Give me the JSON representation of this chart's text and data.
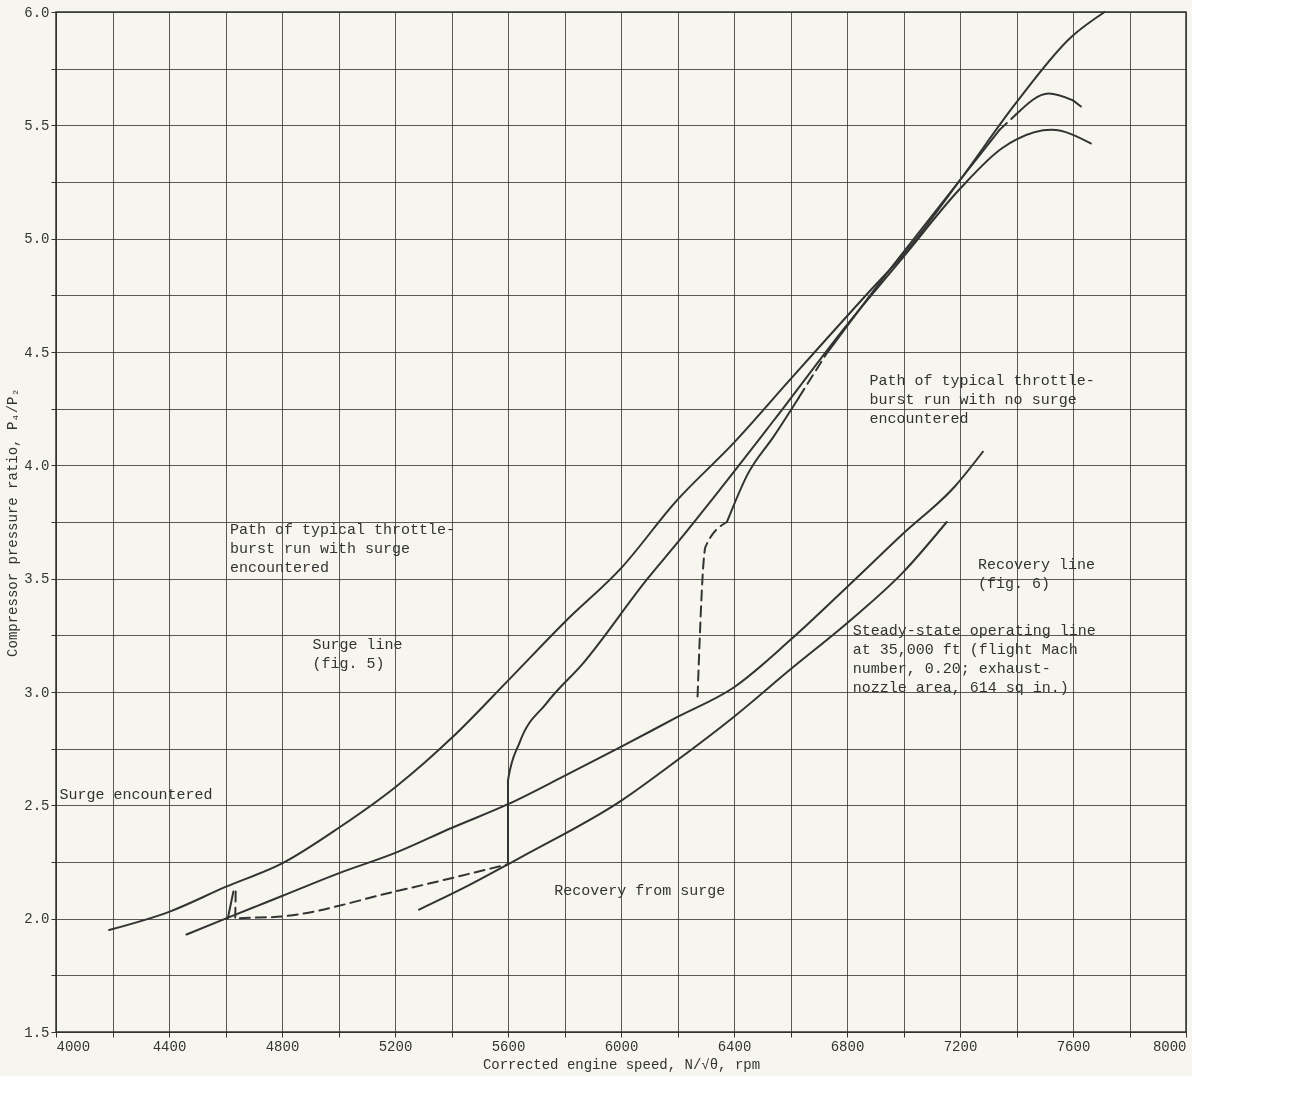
{
  "chart_data": {
    "type": "line",
    "xlabel": "Corrected engine speed, N/√θ, rpm",
    "ylabel": "Compressor pressure ratio, P₄/P₂",
    "xlim": [
      4000,
      8000
    ],
    "ylim": [
      1.5,
      6.0
    ],
    "xticks": [
      4000,
      {
        "value": 4200,
        "label": null
      },
      4400,
      {
        "value": 4600,
        "label": null
      },
      4800,
      {
        "value": 5000,
        "label": null
      },
      5200,
      {
        "value": 5400,
        "label": null
      },
      5600,
      {
        "value": 5800,
        "label": null
      },
      6000,
      {
        "value": 6200,
        "label": null
      },
      6400,
      {
        "value": 6600,
        "label": null
      },
      6800,
      {
        "value": 7000,
        "label": null
      },
      7200,
      {
        "value": 7400,
        "label": null
      },
      7600,
      {
        "value": 7800,
        "label": null
      },
      8000
    ],
    "yticks": [
      1.5,
      {
        "value": 1.75,
        "label": null
      },
      {
        "value": 2.0,
        "label": "2.0"
      },
      {
        "value": 2.25,
        "label": null
      },
      2.5,
      {
        "value": 2.75,
        "label": null
      },
      {
        "value": 3.0,
        "label": "3.0"
      },
      {
        "value": 3.25,
        "label": null
      },
      3.5,
      {
        "value": 3.75,
        "label": null
      },
      {
        "value": 4.0,
        "label": "4.0"
      },
      {
        "value": 4.25,
        "label": null
      },
      4.5,
      {
        "value": 4.75,
        "label": null
      },
      {
        "value": 5.0,
        "label": "5.0"
      },
      {
        "value": 5.25,
        "label": null
      },
      5.5,
      {
        "value": 5.75,
        "label": null
      },
      {
        "value": 6.0,
        "label": "6.0"
      }
    ],
    "grid": true,
    "series": [
      {
        "color": "#333333",
        "line_style": "solid",
        "x": [
          4188,
          4400,
          4600,
          4802,
          5000,
          5201,
          5403,
          5600,
          5802,
          6003,
          6194,
          6400,
          6600,
          6889,
          7000,
          7201,
          7399,
          7594,
          7712
        ],
        "values": [
          1.95,
          2.03,
          2.14,
          2.245,
          2.4,
          2.58,
          2.8,
          3.05,
          3.31,
          3.55,
          3.84,
          4.1,
          4.38,
          4.78,
          4.93,
          5.26,
          5.6,
          5.89,
          6.0
        ]
      },
      {
        "color": "#333333",
        "line_style": "solid",
        "x": [
          4462,
          4600,
          4800,
          5000,
          5201,
          5400,
          5600,
          5800,
          6003,
          6200,
          6399,
          6600,
          6806,
          7000,
          7184,
          7281
        ],
        "values": [
          1.93,
          2.0,
          2.1,
          2.2,
          2.29,
          2.4,
          2.505,
          2.63,
          2.76,
          2.89,
          3.02,
          3.23,
          3.47,
          3.7,
          3.91,
          4.06
        ]
      },
      {
        "color": "#333333",
        "line_style": "solid",
        "x": [
          5285,
          5450,
          5600,
          5674,
          6000,
          6200,
          6399,
          6600,
          6806,
          7000,
          7153
        ],
        "values": [
          2.04,
          2.14,
          2.24,
          2.29,
          2.52,
          2.7,
          2.89,
          3.1,
          3.31,
          3.53,
          3.75
        ]
      },
      {
        "color": "#333333",
        "line_style": "solid",
        "x": [
          4608,
          4628
        ],
        "values": [
          2.0,
          2.12
        ]
      },
      {
        "color": "#333333",
        "line_style": "dashed",
        "x": [
          4636,
          4634,
          4802,
          5201,
          5600
        ],
        "values": [
          2.12,
          2.0,
          2.01,
          2.12,
          2.24
        ]
      },
      {
        "color": "#333333",
        "line_style": "solid",
        "x": [
          5600,
          5600,
          5642,
          5736,
          5868,
          6094,
          6194,
          6542,
          6800,
          7000,
          7200,
          7350,
          7524,
          7663
        ],
        "values": [
          2.24,
          2.61,
          2.78,
          2.95,
          3.13,
          3.5,
          3.65,
          4.2,
          4.62,
          4.92,
          5.22,
          5.4,
          5.48,
          5.42
        ]
      },
      {
        "color": "#333333",
        "line_style": "dashed",
        "x": [
          6271,
          6299,
          6375
        ],
        "values": [
          2.98,
          3.64,
          3.75
        ]
      },
      {
        "color": "#333333",
        "line_style": "solid",
        "x": [
          6375,
          6448,
          6542,
          6630
        ],
        "values": [
          3.75,
          3.96,
          4.13,
          4.3
        ]
      },
      {
        "color": "#333333",
        "line_style": "dashed",
        "x": [
          6630,
          6726
        ],
        "values": [
          4.3,
          4.49
        ]
      },
      {
        "color": "#333333",
        "line_style": "solid",
        "x": [
          6726,
          6900,
          7100,
          7340
        ],
        "values": [
          4.49,
          4.78,
          5.1,
          5.48
        ]
      },
      {
        "color": "#333333",
        "line_style": "dashed",
        "x": [
          7340,
          7400
        ],
        "values": [
          5.48,
          5.55
        ]
      },
      {
        "color": "#333333",
        "line_style": "solid",
        "x": [
          7400,
          7514,
          7600
        ],
        "values": [
          5.55,
          5.64,
          5.61
        ]
      },
      {
        "color": "#333333",
        "line_style": "dashed",
        "x": [
          7600,
          7642
        ],
        "values": [
          5.61,
          5.57
        ]
      }
    ],
    "annotations": [
      "Path of typical throttle-\nburst run with surge\nencountered",
      "Surge line\n(fig. 5)",
      "Surge encountered",
      "Recovery from surge",
      "Steady-state operating line\nat 35,000 ft (flight Mach\nnumber, 0.20; exhaust-\nnozzle area, 614 sq in.)",
      "Recovery line\n(fig. 6)",
      "Path of typical throttle-\nburst run with no surge\nencountered"
    ]
  }
}
